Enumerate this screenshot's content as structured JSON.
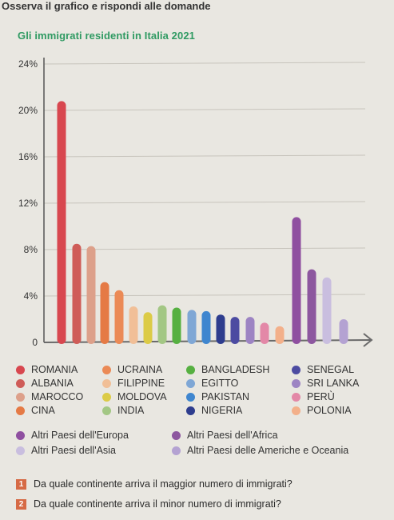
{
  "instruction": "Osserva il grafico e rispondi alle domande",
  "chart_data": {
    "type": "bar",
    "title": "Gli immigrati residenti in Italia 2021",
    "y_ticks": [
      "24%",
      "20%",
      "16%",
      "12%",
      "8%",
      "4%",
      "0"
    ],
    "ylim": [
      0,
      24
    ],
    "grid": true,
    "xlabel": "",
    "ylabel": "",
    "categories": [
      "ROMANIA",
      "ALBANIA",
      "MAROCCO",
      "CINA",
      "UCRAINA",
      "FILIPPINE",
      "MOLDOVA",
      "INDIA",
      "BANGLADESH",
      "EGITTO",
      "PAKISTAN",
      "NIGERIA",
      "SENEGAL",
      "SRI LANKA",
      "PERÙ",
      "POLONIA",
      "Altri Paesi dell'Europa",
      "Altri Paesi dell'Africa",
      "Altri Paesi dell'Asia",
      "Altri Paesi delle Americhe e Oceania"
    ],
    "values": [
      20.8,
      8.5,
      8.3,
      5.2,
      4.5,
      3.1,
      2.6,
      3.2,
      3.0,
      2.8,
      2.7,
      2.4,
      2.2,
      2.2,
      1.7,
      1.4,
      10.8,
      6.3,
      5.6,
      2.0
    ],
    "colors": [
      "#d8474f",
      "#cf5c58",
      "#dda08a",
      "#e57a45",
      "#eb8a56",
      "#f1bf97",
      "#dccb46",
      "#a3c784",
      "#56b041",
      "#7fa7d5",
      "#3f86cf",
      "#2e3d8e",
      "#4c4ba1",
      "#9d84c3",
      "#e388a7",
      "#f3b08a",
      "#8f4fa0",
      "#8d579f",
      "#c9bedf",
      "#b4a2d2"
    ]
  },
  "legend": [
    {
      "label": "ROMANIA",
      "color": "#d8474f"
    },
    {
      "label": "ALBANIA",
      "color": "#cf5c58"
    },
    {
      "label": "MAROCCO",
      "color": "#dda08a"
    },
    {
      "label": "CINA",
      "color": "#e57a45"
    },
    {
      "label": "UCRAINA",
      "color": "#eb8a56"
    },
    {
      "label": "FILIPPINE",
      "color": "#f1bf97"
    },
    {
      "label": "MOLDOVA",
      "color": "#dccb46"
    },
    {
      "label": "INDIA",
      "color": "#a3c784"
    },
    {
      "label": "BANGLADESH",
      "color": "#56b041"
    },
    {
      "label": "EGITTO",
      "color": "#7fa7d5"
    },
    {
      "label": "PAKISTAN",
      "color": "#3f86cf"
    },
    {
      "label": "NIGERIA",
      "color": "#2e3d8e"
    },
    {
      "label": "SENEGAL",
      "color": "#4c4ba1"
    },
    {
      "label": "SRI LANKA",
      "color": "#9d84c3"
    },
    {
      "label": "PERÙ",
      "color": "#e388a7"
    },
    {
      "label": "POLONIA",
      "color": "#f3b08a"
    }
  ],
  "legend_groups": [
    {
      "label": "Altri Paesi dell'Europa",
      "color": "#8f4fa0"
    },
    {
      "label": "Altri Paesi dell'Africa",
      "color": "#8d579f"
    },
    {
      "label": "Altri Paesi dell'Asia",
      "color": "#c9bedf"
    },
    {
      "label": "Altri Paesi delle Americhe e Oceania",
      "color": "#b4a2d2"
    }
  ],
  "questions": [
    {
      "num": "1",
      "text": "Da quale continente arriva il maggior numero di immigrati?"
    },
    {
      "num": "2",
      "text": "Da quale continente arriva il minor numero di immigrati?"
    }
  ]
}
